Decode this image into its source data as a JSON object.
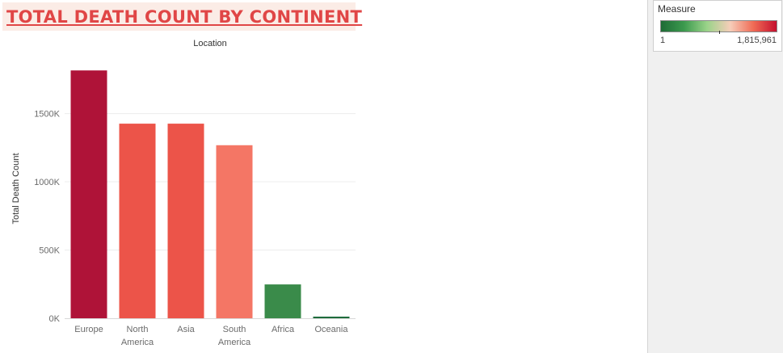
{
  "header": {
    "title": "TOTAL DEATH COUNT BY CONTINENT"
  },
  "legend": {
    "title": "Measure",
    "min_label": "1",
    "max_label": "1,815,961",
    "colors": [
      "#1e6b36",
      "#3c9a4e",
      "#9bd38a",
      "#f6cdb9",
      "#f06b55",
      "#c5102f"
    ]
  },
  "chart_data": {
    "type": "bar",
    "title": "",
    "column_header": "Location",
    "xlabel": "",
    "ylabel": "Total Death Count",
    "categories": [
      [
        "Europe"
      ],
      [
        "North",
        "America"
      ],
      [
        "Asia"
      ],
      [
        "South",
        "America"
      ],
      [
        "Africa"
      ],
      [
        "Oceania"
      ]
    ],
    "values": [
      1815961,
      1426000,
      1426000,
      1268000,
      248000,
      12000
    ],
    "bar_colors": [
      "#af1338",
      "#ec5449",
      "#ec5449",
      "#f47665",
      "#3a8b4a",
      "#1f6c3c"
    ],
    "ylim": [
      0,
      1900000
    ],
    "yticks": [
      0,
      500000,
      1000000,
      1500000
    ],
    "ytick_labels": [
      "0K",
      "500K",
      "1000K",
      "1500K"
    ],
    "grid": true,
    "legend_placement": "top-right"
  }
}
